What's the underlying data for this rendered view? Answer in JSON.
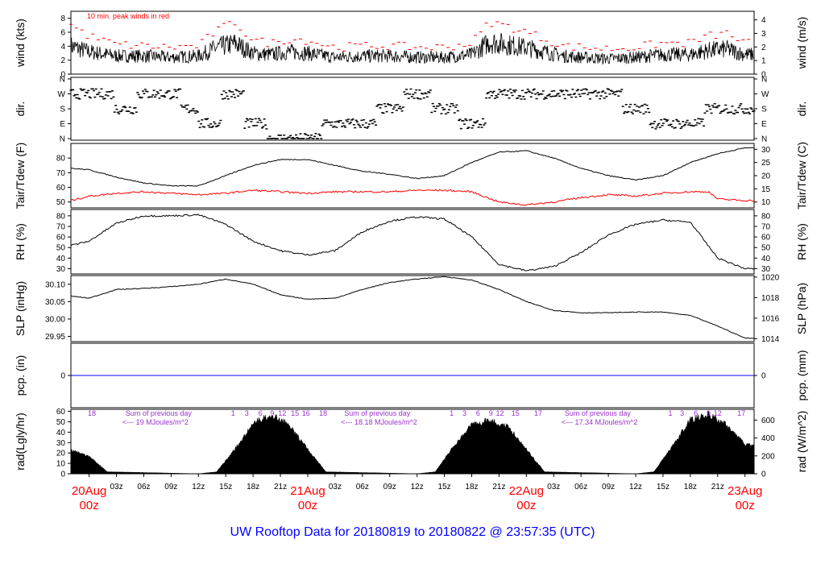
{
  "title": "UW Rooftop Data for 20180819  to  20180822 @ 23:57:35  (UTC)",
  "colors": {
    "black": "#000000",
    "red": "#ff0000",
    "blue": "#0000ff",
    "purple": "#9932cc"
  },
  "x_axis": {
    "hour_labels": [
      "03z",
      "06z",
      "09z",
      "12z",
      "15z",
      "18z",
      "21z",
      "03z",
      "06z",
      "09z",
      "12z",
      "15z",
      "18z",
      "21z",
      "03z",
      "06z",
      "09z",
      "12z",
      "15z",
      "18z",
      "21z"
    ],
    "hour_positions_h": [
      3,
      6,
      9,
      12,
      15,
      18,
      21,
      27,
      30,
      33,
      36,
      39,
      42,
      45,
      51,
      54,
      57,
      60,
      63,
      66,
      69
    ],
    "day_labels": [
      {
        "date": "20Aug",
        "time": "00z",
        "h": 0
      },
      {
        "date": "21Aug",
        "time": "00z",
        "h": 24
      },
      {
        "date": "22Aug",
        "time": "00z",
        "h": 48
      },
      {
        "date": "23Aug",
        "time": "00z",
        "h": 72
      }
    ]
  },
  "panels": {
    "wind": {
      "left_label": "wind (kts)",
      "right_label": "wind (m/s)",
      "left_ticks": [
        "0",
        "2",
        "4",
        "6",
        "8"
      ],
      "right_ticks": [
        "0",
        "1",
        "2",
        "3",
        "4"
      ],
      "note": "10 min. peak winds in red",
      "ylim": [
        0,
        9
      ]
    },
    "dir": {
      "left_label": "dir.",
      "right_label": "dir.",
      "ticks": [
        "N",
        "E",
        "S",
        "W",
        "N"
      ]
    },
    "temp": {
      "left_label": "Tair/Tdew (F)",
      "right_label": "Tair/Tdew (C)",
      "left_ticks": [
        "50",
        "60",
        "70",
        "80"
      ],
      "right_ticks": [
        "10",
        "15",
        "20",
        "25",
        "30"
      ],
      "ylim": [
        46,
        90
      ]
    },
    "rh": {
      "left_label": "RH (%)",
      "right_label": "RH (%)",
      "ticks": [
        "30",
        "40",
        "50",
        "60",
        "70",
        "80"
      ],
      "ylim": [
        25,
        86
      ]
    },
    "slp": {
      "left_label": "SLP (inHg)",
      "right_label": "SLP (hPa)",
      "left_ticks": [
        "29.95",
        "30.00",
        "30.05",
        "30.10"
      ],
      "right_ticks": [
        "1014",
        "1016",
        "1018",
        "1020"
      ],
      "ylim": [
        29.935,
        30.125
      ]
    },
    "pcp": {
      "left_label": "pcp. (in)",
      "right_label": "pcp. (mm)",
      "left_ticks": [
        "0"
      ],
      "right_ticks": [
        "0"
      ],
      "value": 0
    },
    "rad": {
      "left_label": "rad(Lgly/hr)",
      "right_label": "rad (W/m^2)",
      "left_ticks": [
        "0",
        "10",
        "20",
        "30",
        "40",
        "50",
        "60"
      ],
      "right_ticks": [
        "0",
        "200",
        "400",
        "600"
      ],
      "ylim": [
        0,
        62
      ],
      "sums": [
        {
          "line1": "Sum of previous day",
          "line2": "<--- 19 MJoules/m^2",
          "h": 4
        },
        {
          "line1": "Sum of previous day",
          "line2": "<--- 18.18 MJoules/m^2",
          "h": 28
        },
        {
          "line1": "Sum of previous day",
          "line2": "<--- 17.34 MJoules/m^2",
          "h": 52.2
        }
      ],
      "hour_marks": [
        {
          "text": "18",
          "h": 0.3
        },
        {
          "text": "1",
          "h": 15.8
        },
        {
          "text": "3",
          "h": 17.3
        },
        {
          "text": "6",
          "h": 18.8
        },
        {
          "text": "9",
          "h": 20.1
        },
        {
          "text": "12",
          "h": 21.2
        },
        {
          "text": "15",
          "h": 22.6
        },
        {
          "text": "16",
          "h": 23.8
        },
        {
          "text": "18",
          "h": 25.7
        },
        {
          "text": "1",
          "h": 39.8
        },
        {
          "text": "3",
          "h": 41.2
        },
        {
          "text": "6",
          "h": 42.7
        },
        {
          "text": "9",
          "h": 44.1
        },
        {
          "text": "12",
          "h": 45.1
        },
        {
          "text": "15",
          "h": 46.8
        },
        {
          "text": "17",
          "h": 49.3
        },
        {
          "text": "1",
          "h": 63.8
        },
        {
          "text": "3",
          "h": 65.1
        },
        {
          "text": "6",
          "h": 66.6
        },
        {
          "text": "9",
          "h": 68.0
        },
        {
          "text": "12",
          "h": 69.0
        },
        {
          "text": "17",
          "h": 71.6
        }
      ]
    }
  },
  "chart_data": {
    "type": "line",
    "title": "UW Rooftop Data for 20180819  to  20180822 @ 23:57:35  (UTC)",
    "x_units": "hours since 20Aug 00z",
    "x_range": [
      -2,
      73
    ],
    "series": [
      {
        "name": "wind (kts)",
        "x": [
          -2,
          0,
          3,
          6,
          9,
          12,
          14,
          16,
          18,
          20,
          22,
          24,
          27,
          30,
          33,
          36,
          39,
          42,
          44,
          46,
          48,
          50,
          52,
          54,
          57,
          60,
          63,
          66,
          68,
          70,
          72
        ],
        "values": [
          4.0,
          3.2,
          2.6,
          2.6,
          2.4,
          2.6,
          3.8,
          4.4,
          3.0,
          2.8,
          3.2,
          3.0,
          2.4,
          2.6,
          2.6,
          2.4,
          2.4,
          2.8,
          4.6,
          4.2,
          3.8,
          3.2,
          2.6,
          2.4,
          2.2,
          2.4,
          2.8,
          2.8,
          3.4,
          3.6,
          2.8
        ]
      },
      {
        "name": "10 min. peak winds in red",
        "x": [
          -2,
          0,
          3,
          6,
          9,
          12,
          14,
          16,
          18,
          20,
          22,
          24,
          27,
          30,
          33,
          36,
          39,
          42,
          44,
          46,
          48,
          50,
          52,
          54,
          57,
          60,
          63,
          66,
          68,
          70,
          72
        ],
        "values": [
          6.8,
          5.2,
          4.0,
          3.8,
          3.6,
          3.8,
          6.0,
          7.2,
          4.6,
          4.2,
          4.8,
          4.6,
          3.6,
          3.8,
          3.8,
          3.6,
          3.6,
          4.2,
          7.2,
          6.6,
          5.8,
          4.8,
          3.8,
          3.6,
          3.4,
          3.6,
          4.2,
          4.2,
          5.2,
          5.6,
          4.2
        ]
      },
      {
        "name": "Tair",
        "x": [
          -2,
          0,
          3,
          6,
          9,
          12,
          15,
          18,
          21,
          24,
          27,
          30,
          33,
          36,
          39,
          42,
          45,
          48,
          51,
          54,
          57,
          60,
          63,
          66,
          69,
          72
        ],
        "values": [
          73,
          72,
          67,
          63,
          61,
          61,
          68,
          75,
          79,
          79,
          75,
          71,
          69,
          66,
          68,
          77,
          84,
          85,
          80,
          73,
          68,
          65,
          68,
          77,
          83,
          87
        ]
      },
      {
        "name": "Tdew",
        "x": [
          -2,
          0,
          3,
          6,
          9,
          12,
          15,
          18,
          21,
          24,
          27,
          30,
          33,
          36,
          39,
          42,
          45,
          48,
          51,
          54,
          57,
          60,
          63,
          66,
          68,
          69,
          72
        ],
        "values": [
          51,
          54,
          56,
          57,
          56,
          55,
          56,
          58,
          57,
          56,
          57,
          57,
          57,
          58,
          58,
          57,
          50,
          48,
          50,
          53,
          55,
          54,
          56,
          57,
          57,
          52,
          51
        ]
      },
      {
        "name": "RH (%)",
        "x": [
          -2,
          0,
          3,
          6,
          9,
          12,
          15,
          18,
          21,
          24,
          27,
          30,
          33,
          36,
          39,
          42,
          45,
          48,
          51,
          54,
          57,
          60,
          63,
          66,
          69,
          72
        ],
        "values": [
          52,
          56,
          73,
          80,
          80,
          81,
          72,
          56,
          47,
          43,
          47,
          65,
          75,
          79,
          77,
          60,
          34,
          28,
          32,
          45,
          62,
          72,
          76,
          74,
          40,
          30
        ]
      },
      {
        "name": "SLP (inHg)",
        "x": [
          -2,
          0,
          3,
          6,
          9,
          12,
          15,
          18,
          21,
          24,
          27,
          30,
          33,
          36,
          39,
          42,
          45,
          48,
          51,
          54,
          57,
          60,
          63,
          66,
          69,
          72
        ],
        "values": [
          30.066,
          30.06,
          30.085,
          30.088,
          30.093,
          30.1,
          30.115,
          30.1,
          30.07,
          30.057,
          30.06,
          30.085,
          30.105,
          30.115,
          30.122,
          30.112,
          30.085,
          30.05,
          30.025,
          30.018,
          30.018,
          30.02,
          30.02,
          30.01,
          29.98,
          29.945
        ]
      },
      {
        "name": "rad(Lgly/hr)",
        "x": [
          -2,
          0,
          2,
          12,
          14,
          16,
          18,
          20,
          22,
          24,
          26,
          36,
          38,
          40,
          42,
          44,
          46,
          48,
          50,
          60,
          62,
          64,
          66,
          68,
          70,
          72
        ],
        "values": [
          24,
          18,
          2,
          0,
          2,
          25,
          52,
          60,
          50,
          25,
          2,
          0,
          2,
          28,
          50,
          55,
          48,
          25,
          2,
          0,
          2,
          28,
          55,
          60,
          50,
          30
        ]
      },
      {
        "name": "pcp. (in)",
        "x": [
          -2,
          72
        ],
        "values": [
          0,
          0
        ]
      }
    ],
    "wind_dir_points": [
      {
        "h": -1.5,
        "dir": "W"
      },
      {
        "h": 1.5,
        "dir": "W"
      },
      {
        "h": 4,
        "dir": "S"
      },
      {
        "h": 6.5,
        "dir": "W"
      },
      {
        "h": 9,
        "dir": "W"
      },
      {
        "h": 11,
        "dir": "S"
      },
      {
        "h": 13,
        "dir": "E"
      },
      {
        "h": 16,
        "dir": "W"
      },
      {
        "h": 18,
        "dir": "E"
      },
      {
        "h": 21,
        "dir": "N"
      },
      {
        "h": 24,
        "dir": "N"
      },
      {
        "h": 27,
        "dir": "E"
      },
      {
        "h": 30,
        "dir": "E"
      },
      {
        "h": 33,
        "dir": "S"
      },
      {
        "h": 36,
        "dir": "W"
      },
      {
        "h": 39,
        "dir": "S"
      },
      {
        "h": 42,
        "dir": "E"
      },
      {
        "h": 45,
        "dir": "W"
      },
      {
        "h": 48,
        "dir": "W"
      },
      {
        "h": 51,
        "dir": "W"
      },
      {
        "h": 54,
        "dir": "W"
      },
      {
        "h": 57,
        "dir": "W"
      },
      {
        "h": 60,
        "dir": "S"
      },
      {
        "h": 63,
        "dir": "E"
      },
      {
        "h": 66,
        "dir": "E"
      },
      {
        "h": 69,
        "dir": "S"
      },
      {
        "h": 72,
        "dir": "S"
      }
    ]
  }
}
